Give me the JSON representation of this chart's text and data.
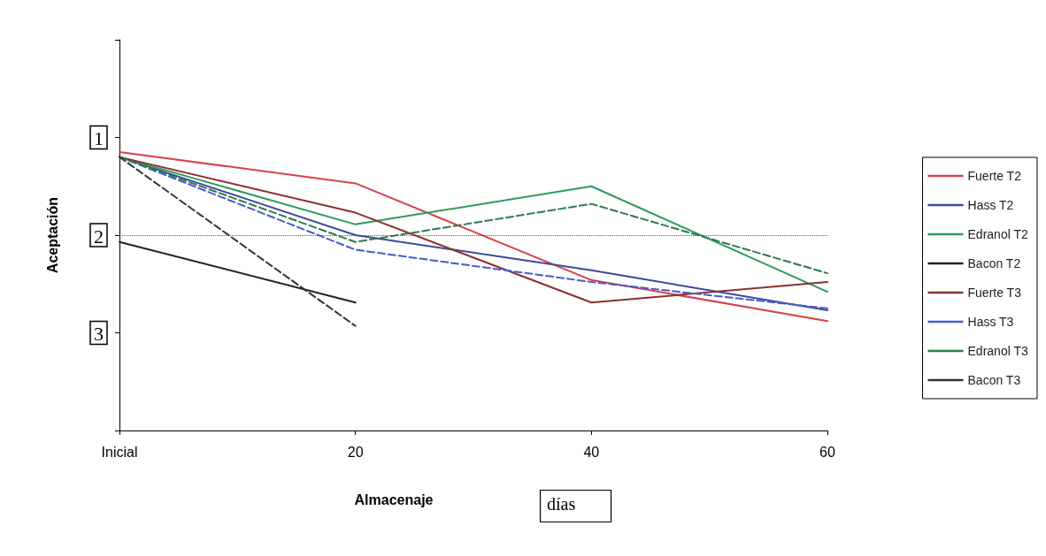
{
  "chart_data": {
    "type": "line",
    "ylabel": "Aceptación",
    "xlabel": "Almacenaje",
    "annotations": [
      "días"
    ],
    "x": [
      0,
      20,
      40,
      60
    ],
    "xlim": [
      0,
      60
    ],
    "xticks": [
      {
        "value": 0,
        "label": "Inicial"
      },
      20,
      40,
      60
    ],
    "ylim": [
      4,
      0
    ],
    "yticks": [
      {
        "value": 0,
        "label": null
      },
      1,
      2,
      3,
      {
        "value": 4,
        "label": null
      }
    ],
    "grid": false,
    "legend": "right",
    "marker": "none",
    "ref_lines": [
      {
        "axis": "y",
        "value": 2,
        "color": "#555555",
        "line_style": "dotted"
      }
    ],
    "series": [
      {
        "name": "Fuerte T2",
        "color": "#d9404a",
        "line_style": "solid",
        "values": [
          1.15,
          1.47,
          2.46,
          2.88
        ]
      },
      {
        "name": "Hass T2",
        "color": "#3a4a9a",
        "line_style": "solid",
        "values": [
          1.2,
          2.0,
          2.36,
          2.77
        ]
      },
      {
        "name": "Edranol T2",
        "color": "#2e9a5e",
        "line_style": "solid",
        "values": [
          1.2,
          1.89,
          1.5,
          2.58
        ]
      },
      {
        "name": "Bacon T2",
        "color": "#222222",
        "line_style": "solid",
        "values": [
          2.07,
          2.69,
          null,
          null
        ]
      },
      {
        "name": "Fuerte T3",
        "color": "#8a3030",
        "line_style": "solid",
        "values": [
          1.2,
          1.77,
          2.69,
          2.48
        ]
      },
      {
        "name": "Hass T3",
        "color": "#4a5ac8",
        "line_style": "dashed",
        "values": [
          1.2,
          2.15,
          2.48,
          2.75
        ]
      },
      {
        "name": "Edranol T3",
        "color": "#2e7a4a",
        "line_style": "dashed",
        "values": [
          1.2,
          2.07,
          1.68,
          2.39
        ]
      },
      {
        "name": "Bacon T3",
        "color": "#333333",
        "line_style": "dashed",
        "values": [
          1.2,
          2.93,
          null,
          null
        ]
      }
    ]
  }
}
